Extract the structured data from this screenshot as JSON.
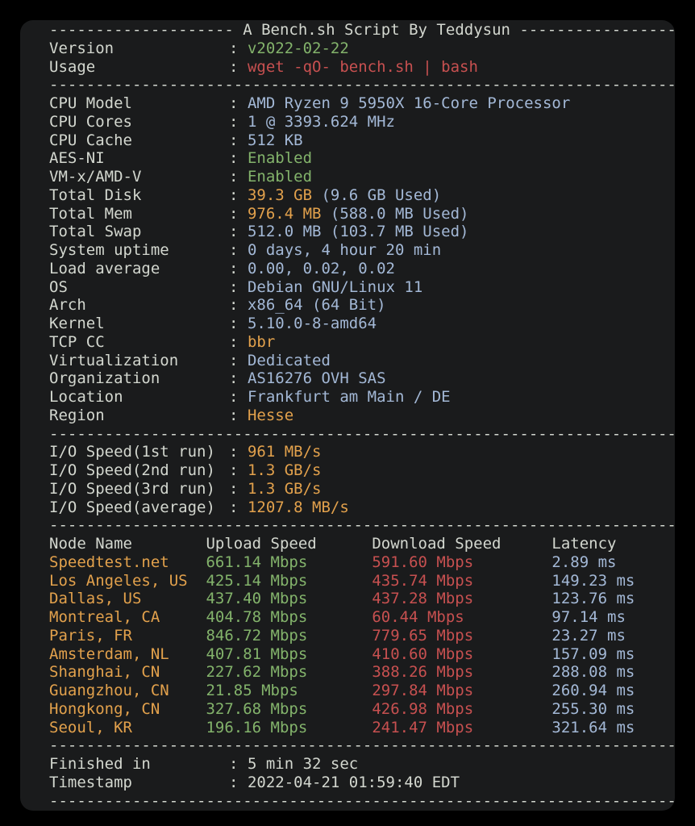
{
  "colors": {
    "background": "#000000",
    "terminal_bg": "#1a1b1c",
    "foreground": "#d3d7cf",
    "blue": "#a3b8d6",
    "green": "#83b36b",
    "red": "#c75050",
    "orange": "#e2a14c"
  },
  "terminal": {
    "title_line": "-------------------- A Bench.sh Script By Teddysun -------------------",
    "separator": "----------------------------------------------------------------------",
    "info_top": [
      {
        "label": "Version",
        "segments": [
          {
            "text": "v2022-02-22",
            "color": "green"
          }
        ]
      },
      {
        "label": "Usage",
        "segments": [
          {
            "text": "wget -qO- bench.sh | bash",
            "color": "red"
          }
        ]
      }
    ],
    "system_info": [
      {
        "label": "CPU Model",
        "segments": [
          {
            "text": "AMD Ryzen 9 5950X 16-Core Processor",
            "color": "blue"
          }
        ]
      },
      {
        "label": "CPU Cores",
        "segments": [
          {
            "text": "1 @ 3393.624 MHz",
            "color": "blue"
          }
        ]
      },
      {
        "label": "CPU Cache",
        "segments": [
          {
            "text": "512 KB",
            "color": "blue"
          }
        ]
      },
      {
        "label": "AES-NI",
        "segments": [
          {
            "text": "Enabled",
            "color": "green"
          }
        ]
      },
      {
        "label": "VM-x/AMD-V",
        "segments": [
          {
            "text": "Enabled",
            "color": "green"
          }
        ]
      },
      {
        "label": "Total Disk",
        "segments": [
          {
            "text": "39.3 GB",
            "color": "orange"
          },
          {
            "text": " (9.6 GB Used)",
            "color": "blue"
          }
        ]
      },
      {
        "label": "Total Mem",
        "segments": [
          {
            "text": "976.4 MB",
            "color": "orange"
          },
          {
            "text": " (588.0 MB Used)",
            "color": "blue"
          }
        ]
      },
      {
        "label": "Total Swap",
        "segments": [
          {
            "text": "512.0 MB (103.7 MB Used)",
            "color": "blue"
          }
        ]
      },
      {
        "label": "System uptime",
        "segments": [
          {
            "text": "0 days, 4 hour 20 min",
            "color": "blue"
          }
        ]
      },
      {
        "label": "Load average",
        "segments": [
          {
            "text": "0.00, 0.02, 0.02",
            "color": "blue"
          }
        ]
      },
      {
        "label": "OS",
        "segments": [
          {
            "text": "Debian GNU/Linux 11",
            "color": "blue"
          }
        ]
      },
      {
        "label": "Arch",
        "segments": [
          {
            "text": "x86_64 (64 Bit)",
            "color": "blue"
          }
        ]
      },
      {
        "label": "Kernel",
        "segments": [
          {
            "text": "5.10.0-8-amd64",
            "color": "blue"
          }
        ]
      },
      {
        "label": "TCP CC",
        "segments": [
          {
            "text": "bbr",
            "color": "orange"
          }
        ]
      },
      {
        "label": "Virtualization",
        "segments": [
          {
            "text": "Dedicated",
            "color": "blue"
          }
        ]
      },
      {
        "label": "Organization",
        "segments": [
          {
            "text": "AS16276 OVH SAS",
            "color": "blue"
          }
        ]
      },
      {
        "label": "Location",
        "segments": [
          {
            "text": "Frankfurt am Main / DE",
            "color": "blue"
          }
        ]
      },
      {
        "label": "Region",
        "segments": [
          {
            "text": "Hesse",
            "color": "orange"
          }
        ]
      }
    ],
    "io_speed": [
      {
        "label": "I/O Speed(1st run)",
        "segments": [
          {
            "text": "961 MB/s",
            "color": "orange"
          }
        ]
      },
      {
        "label": "I/O Speed(2nd run)",
        "segments": [
          {
            "text": "1.3 GB/s",
            "color": "orange"
          }
        ]
      },
      {
        "label": "I/O Speed(3rd run)",
        "segments": [
          {
            "text": "1.3 GB/s",
            "color": "orange"
          }
        ]
      },
      {
        "label": "I/O Speed(average)",
        "segments": [
          {
            "text": "1207.8 MB/s",
            "color": "orange"
          }
        ]
      }
    ],
    "speedtest": {
      "headers": [
        "Node Name",
        "Upload Speed",
        "Download Speed",
        "Latency"
      ],
      "rows": [
        {
          "node": "Speedtest.net",
          "upload": "661.14 Mbps",
          "download": "591.60 Mbps",
          "latency": "2.89 ms"
        },
        {
          "node": "Los Angeles, US",
          "upload": "425.14 Mbps",
          "download": "435.74 Mbps",
          "latency": "149.23 ms"
        },
        {
          "node": "Dallas, US",
          "upload": "437.40 Mbps",
          "download": "437.28 Mbps",
          "latency": "123.76 ms"
        },
        {
          "node": "Montreal, CA",
          "upload": "404.78 Mbps",
          "download": "60.44 Mbps",
          "latency": "97.14 ms"
        },
        {
          "node": "Paris, FR",
          "upload": "846.72 Mbps",
          "download": "779.65 Mbps",
          "latency": "23.27 ms"
        },
        {
          "node": "Amsterdam, NL",
          "upload": "407.81 Mbps",
          "download": "410.60 Mbps",
          "latency": "157.09 ms"
        },
        {
          "node": "Shanghai, CN",
          "upload": "227.62 Mbps",
          "download": "388.26 Mbps",
          "latency": "288.08 ms"
        },
        {
          "node": "Guangzhou, CN",
          "upload": "21.85 Mbps",
          "download": "297.84 Mbps",
          "latency": "260.94 ms"
        },
        {
          "node": "Hongkong, CN",
          "upload": "327.68 Mbps",
          "download": "426.98 Mbps",
          "latency": "255.30 ms"
        },
        {
          "node": "Seoul, KR",
          "upload": "196.16 Mbps",
          "download": "241.47 Mbps",
          "latency": "321.64 ms"
        }
      ]
    },
    "footer": [
      {
        "label": "Finished in",
        "segments": [
          {
            "text": "5 min 32 sec",
            "color": "fg"
          }
        ]
      },
      {
        "label": "Timestamp",
        "segments": [
          {
            "text": "2022-04-21 01:59:40 EDT",
            "color": "fg"
          }
        ]
      }
    ]
  }
}
